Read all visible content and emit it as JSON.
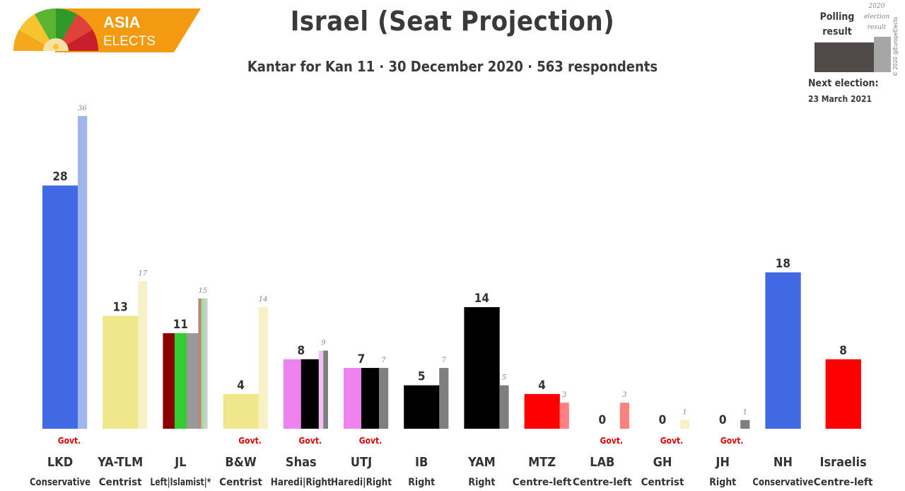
{
  "header": {
    "title": "Israel (Seat Projection)",
    "subtitle": "Kantar for Kan 11 · 30 December 2020 · 563 respondents"
  },
  "logo": {
    "line1": "ASIA",
    "line2": "ELECTS"
  },
  "legend": {
    "polling": "Polling result",
    "previous": "2020 election result",
    "polling_color": "#504a48",
    "previous_color": "#a6a6a6"
  },
  "copyright": "© 2020 @EuropeElects",
  "next_election": {
    "label": "Next election:",
    "date": "23 March 2021"
  },
  "chart_data": {
    "type": "bar",
    "title": "Israel (Seat Projection)",
    "subtitle": "Kantar for Kan 11 · 30 December 2020 · 563 respondents",
    "ylim": [
      0,
      36
    ],
    "grid": false,
    "categories": [
      "LKD",
      "YA-TLM",
      "JL",
      "B&W",
      "Shas",
      "UTJ",
      "IB",
      "YAM",
      "MTZ",
      "LAB",
      "GH",
      "JH",
      "NH",
      "Israelis"
    ],
    "parties": [
      {
        "abbr": "LKD",
        "ideology": "Conservative",
        "govt": "Govt.",
        "poll": 28,
        "prev": 36,
        "poll_colors": [
          "#4169e1"
        ],
        "prev_colors": [
          "#a0b4ee"
        ]
      },
      {
        "abbr": "YA-TLM",
        "ideology": "Centrist",
        "govt": "",
        "poll": 13,
        "prev": 17,
        "poll_colors": [
          "#f0e68c"
        ],
        "prev_colors": [
          "#f7f2c5"
        ]
      },
      {
        "abbr": "JL",
        "ideology": "Left|Islamist|*",
        "govt": "",
        "poll": 11,
        "prev": 15,
        "poll_colors": [
          "#8b0000",
          "#32cd32",
          "#999999"
        ],
        "prev_colors": [
          "#c98080",
          "#98e698",
          "#cccccc"
        ]
      },
      {
        "abbr": "B&W",
        "ideology": "Centrist",
        "govt": "Govt.",
        "poll": 4,
        "prev": 14,
        "poll_colors": [
          "#f0e68c"
        ],
        "prev_colors": [
          "#f7f2c5"
        ]
      },
      {
        "abbr": "Shas",
        "ideology": "Haredi|Right",
        "govt": "Govt.",
        "poll": 8,
        "prev": 9,
        "poll_colors": [
          "#ee82ee",
          "#000000"
        ],
        "prev_colors": [
          "#f4c0f4",
          "#7f7f7f"
        ]
      },
      {
        "abbr": "UTJ",
        "ideology": "Haredi|Right",
        "govt": "Govt.",
        "poll": 7,
        "prev": 7,
        "poll_colors": [
          "#ee82ee",
          "#000000"
        ],
        "prev_colors": [
          "#7f7f7f"
        ]
      },
      {
        "abbr": "IB",
        "ideology": "Right",
        "govt": "",
        "poll": 5,
        "prev": 7,
        "poll_colors": [
          "#000000"
        ],
        "prev_colors": [
          "#7f7f7f"
        ]
      },
      {
        "abbr": "YAM",
        "ideology": "Right",
        "govt": "",
        "poll": 14,
        "prev": 5,
        "poll_colors": [
          "#000000"
        ],
        "prev_colors": [
          "#7f7f7f"
        ]
      },
      {
        "abbr": "MTZ",
        "ideology": "Centre-left",
        "govt": "",
        "poll": 4,
        "prev": 3,
        "poll_colors": [
          "#ff0000"
        ],
        "prev_colors": [
          "#ff8080"
        ]
      },
      {
        "abbr": "LAB",
        "ideology": "Centre-left",
        "govt": "Govt.",
        "poll": 0,
        "prev": 3,
        "poll_colors": [
          "#ff0000"
        ],
        "prev_colors": [
          "#ff8080"
        ]
      },
      {
        "abbr": "GH",
        "ideology": "Centrist",
        "govt": "Govt.",
        "poll": 0,
        "prev": 1,
        "poll_colors": [
          "#f0e68c"
        ],
        "prev_colors": [
          "#f7f2c5"
        ]
      },
      {
        "abbr": "JH",
        "ideology": "Right",
        "govt": "Govt.",
        "poll": 0,
        "prev": 1,
        "poll_colors": [
          "#000000"
        ],
        "prev_colors": [
          "#7f7f7f"
        ]
      },
      {
        "abbr": "NH",
        "ideology": "Conservative",
        "govt": "",
        "poll": 18,
        "prev": null,
        "poll_colors": [
          "#4169e1"
        ],
        "prev_colors": []
      },
      {
        "abbr": "Israelis",
        "ideology": "Centre-left",
        "govt": "",
        "poll": 8,
        "prev": null,
        "poll_colors": [
          "#ff0000"
        ],
        "prev_colors": []
      }
    ],
    "series": [
      {
        "name": "Polling result",
        "values": [
          28,
          13,
          11,
          4,
          8,
          7,
          5,
          14,
          4,
          0,
          0,
          0,
          18,
          8
        ]
      },
      {
        "name": "2020 election result",
        "values": [
          36,
          17,
          15,
          14,
          9,
          7,
          7,
          5,
          3,
          3,
          1,
          1,
          null,
          null
        ]
      }
    ],
    "colors": {
      "govt_label": "#dd0000",
      "text": "#333333"
    }
  }
}
